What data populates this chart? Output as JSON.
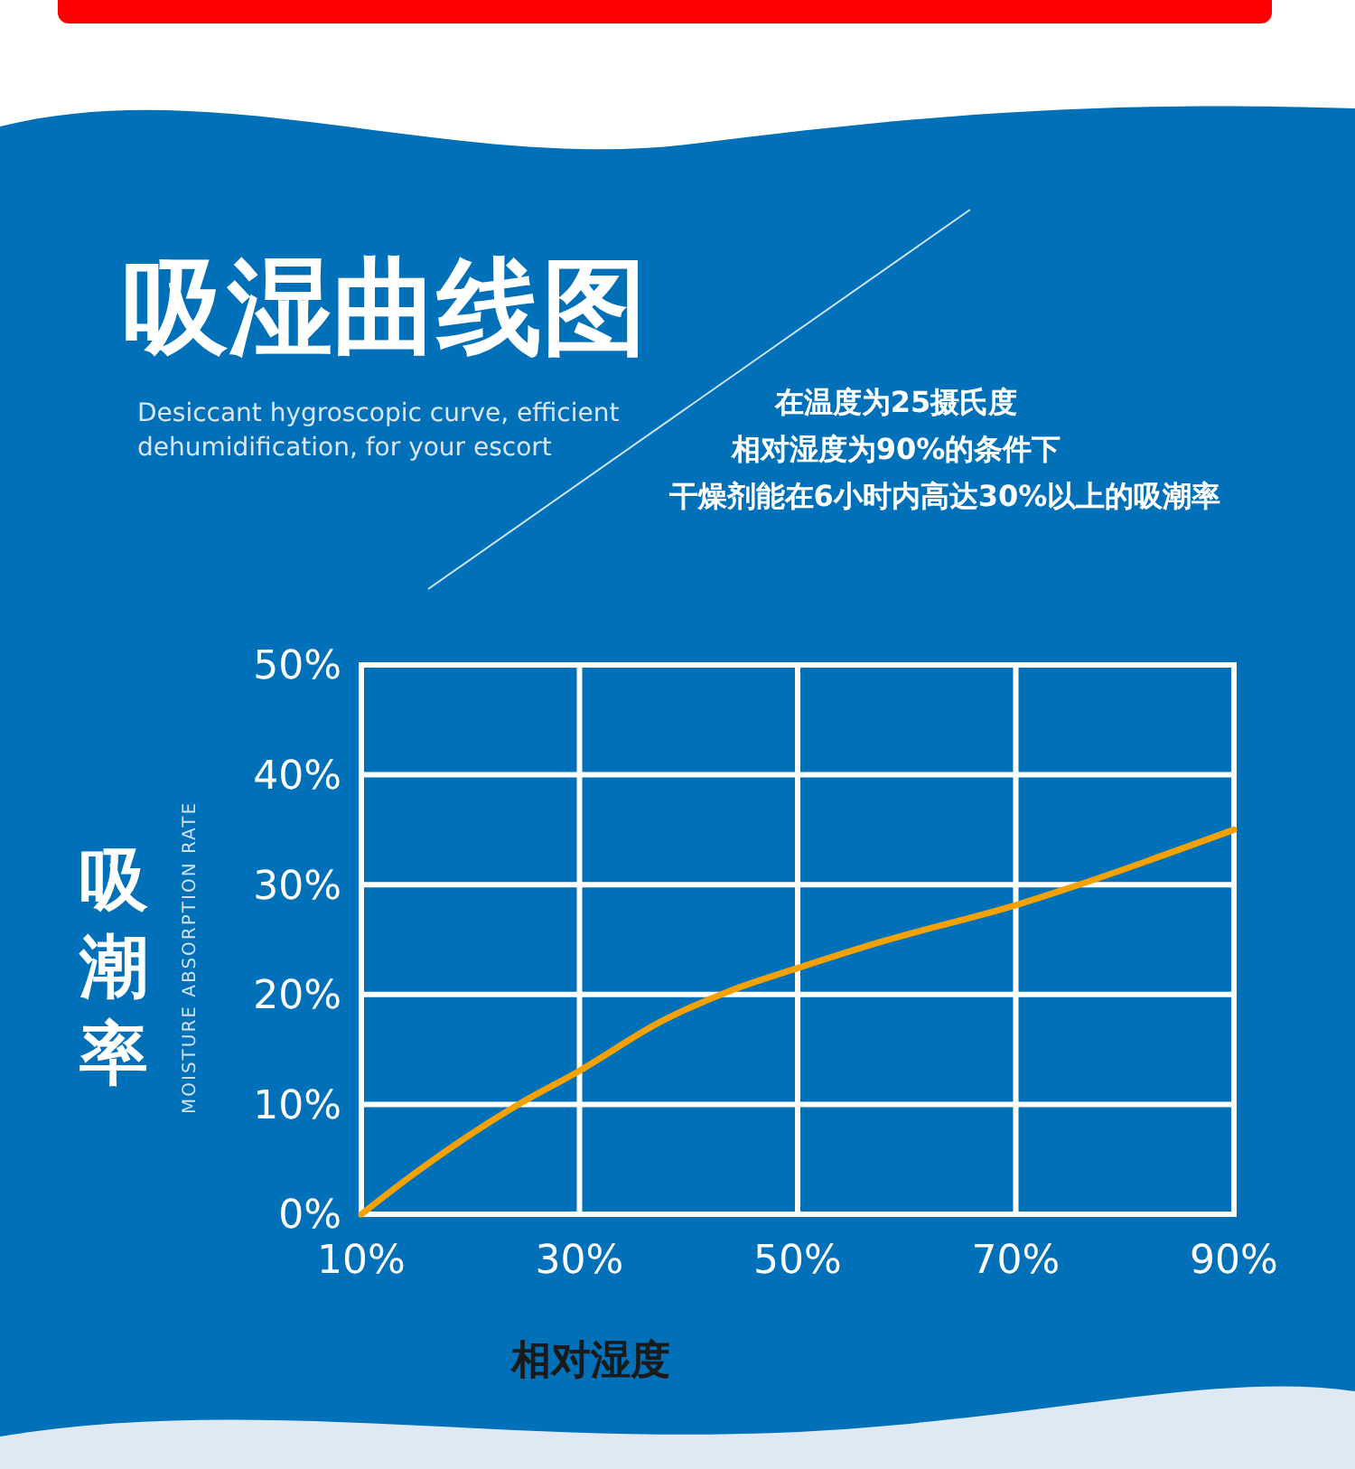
{
  "chart_data": {
    "type": "line",
    "title": "吸湿曲线图",
    "subtitle": "Desiccant hygroscopic curve, efficient dehumidification, for your escort",
    "xlabel": "相对湿度",
    "ylabel": "吸潮率",
    "annotations": [
      "在温度为25摄氏度",
      "相对湿度为90%的条件下",
      "干燥剂能在6小时内高达30%以上的吸潮率",
      "MOISTURE ABSORPTION RATE"
    ],
    "x": [
      10,
      15,
      24.4,
      29.9,
      37.6,
      43.7,
      50.3,
      58,
      70.2,
      75.2,
      90
    ],
    "series": [
      {
        "color": "#f5a100",
        "values": [
          0,
          3.8,
          10,
          13,
          17.6,
          20.3,
          22.5,
          24.9,
          28.2,
          29.8,
          35
        ]
      }
    ],
    "xlim": [
      10,
      90
    ],
    "ylim": [
      0,
      50
    ],
    "xticks": [
      {
        "value": 10,
        "label": "10%"
      },
      {
        "value": 30,
        "label": "30%"
      },
      {
        "value": 50,
        "label": "50%"
      },
      {
        "value": 70,
        "label": "70%"
      },
      {
        "value": 90,
        "label": "90%"
      }
    ],
    "yticks": [
      {
        "value": 0,
        "label": "0%"
      },
      {
        "value": 10,
        "label": "10%"
      },
      {
        "value": 20,
        "label": "20%"
      },
      {
        "value": 30,
        "label": "30%"
      },
      {
        "value": 40,
        "label": "40%"
      },
      {
        "value": 50,
        "label": "50%"
      }
    ],
    "grid": true,
    "marker": "none",
    "line_style": "solid"
  }
}
